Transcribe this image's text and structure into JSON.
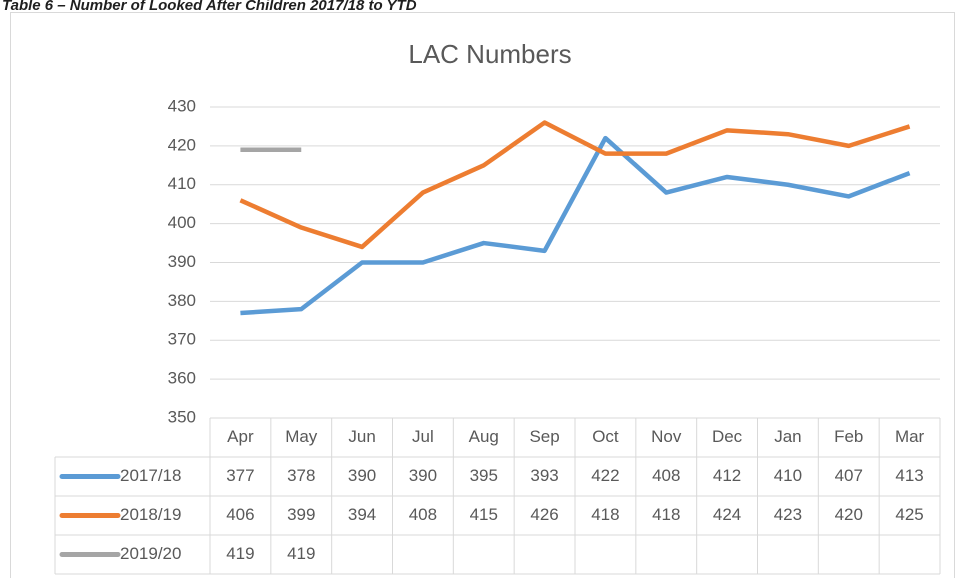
{
  "chart_data": {
    "type": "line",
    "caption": "Table 6 – Number of Looked After Children 2017/18 to YTD",
    "title": "LAC Numbers",
    "categories": [
      "Apr",
      "May",
      "Jun",
      "Jul",
      "Aug",
      "Sep",
      "Oct",
      "Nov",
      "Dec",
      "Jan",
      "Feb",
      "Mar"
    ],
    "series": [
      {
        "name": "2017/18",
        "color": "#5b9bd5",
        "values": [
          377,
          378,
          390,
          390,
          395,
          393,
          422,
          408,
          412,
          410,
          407,
          413
        ]
      },
      {
        "name": "2018/19",
        "color": "#ed7d31",
        "values": [
          406,
          399,
          394,
          408,
          415,
          426,
          418,
          418,
          424,
          423,
          420,
          425
        ]
      },
      {
        "name": "2019/20",
        "color": "#a5a5a5",
        "values": [
          419,
          419,
          null,
          null,
          null,
          null,
          null,
          null,
          null,
          null,
          null,
          null
        ]
      }
    ],
    "ylim": [
      350,
      430
    ],
    "yticks": [
      350,
      360,
      370,
      380,
      390,
      400,
      410,
      420,
      430
    ],
    "grid": true,
    "data_table": true
  }
}
